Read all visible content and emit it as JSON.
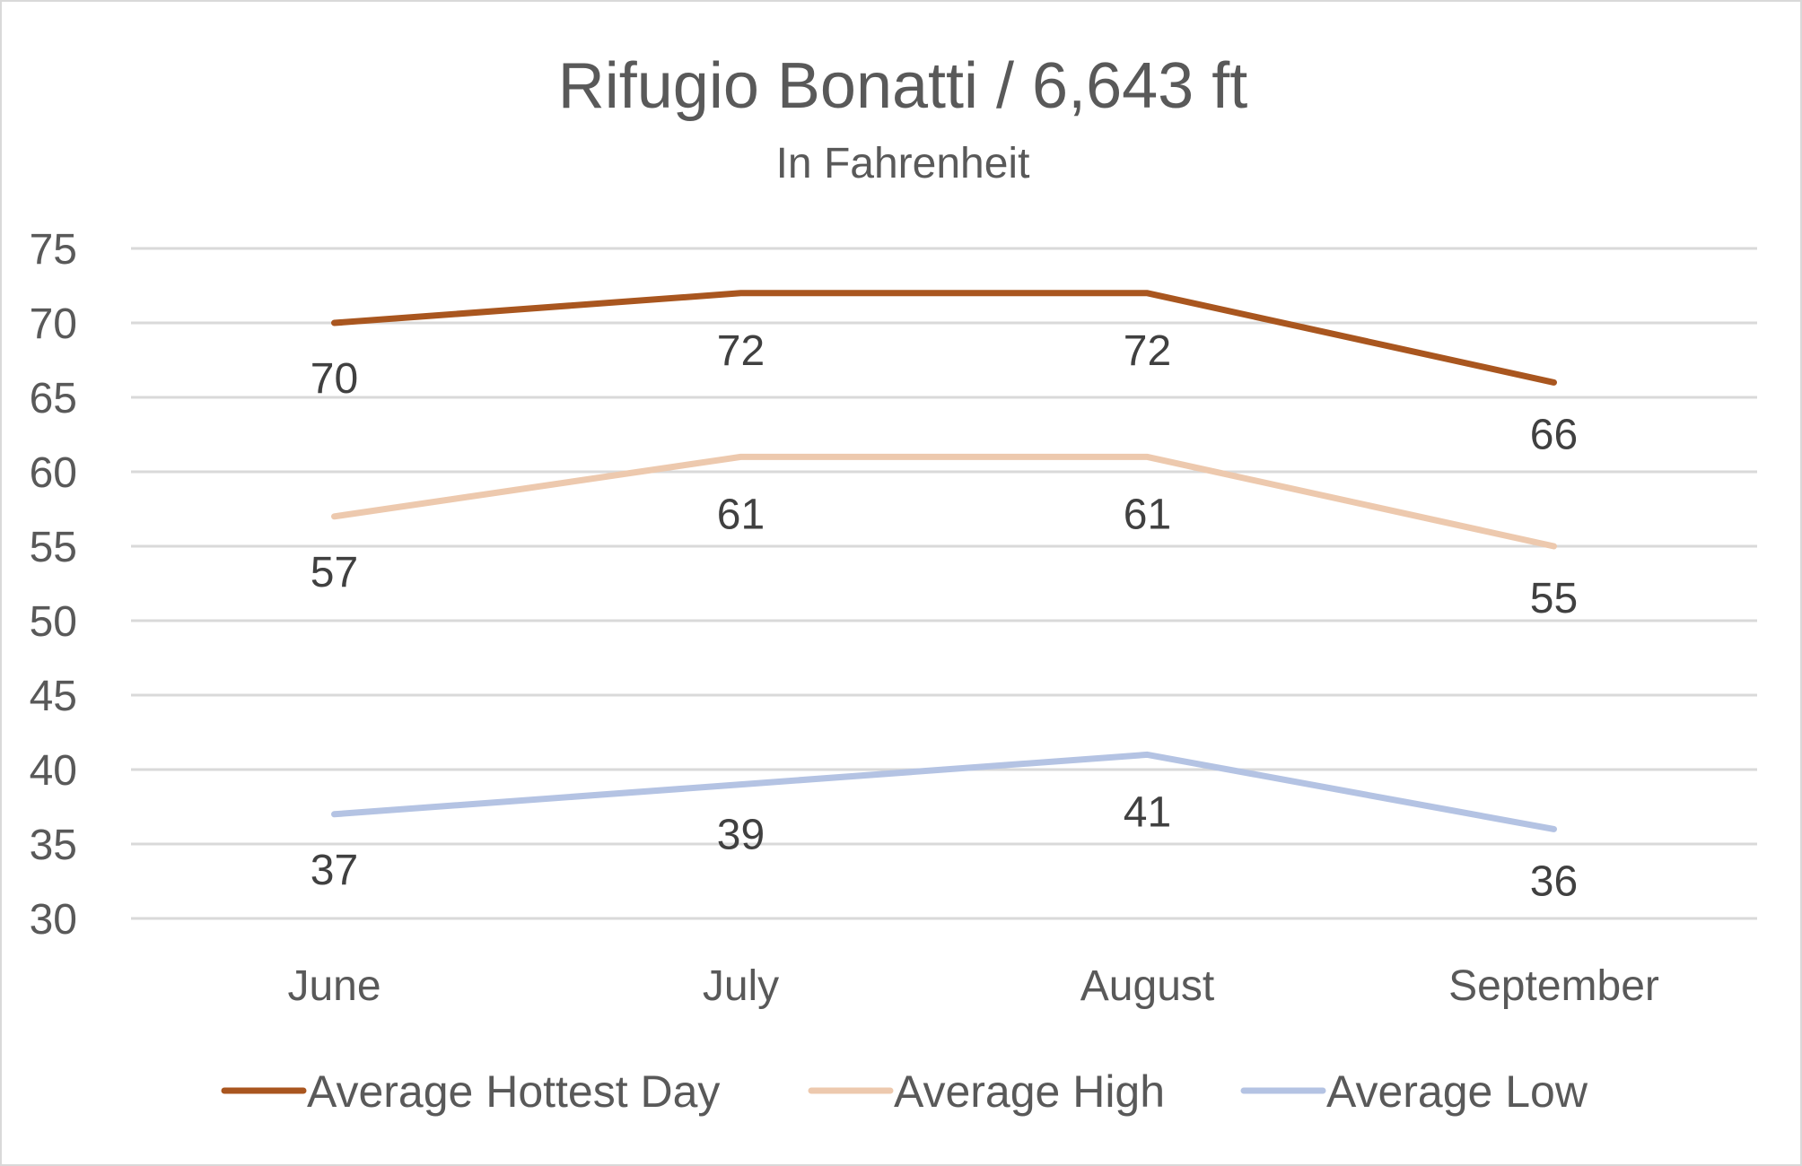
{
  "chart_data": {
    "type": "line",
    "title": "Rifugio Bonatti / 6,643 ft",
    "subtitle": "In Fahrenheit",
    "categories": [
      "June",
      "July",
      "August",
      "September"
    ],
    "ylim": [
      30,
      75
    ],
    "yticks": [
      30,
      35,
      40,
      45,
      50,
      55,
      60,
      65,
      70,
      75
    ],
    "grid": true,
    "legend_position": "bottom",
    "series": [
      {
        "name": "Average Hottest Day",
        "values": [
          70,
          72,
          72,
          66
        ],
        "labels": [
          "70",
          "72",
          "72",
          "66"
        ],
        "color": "#a9561f"
      },
      {
        "name": "Average High",
        "values": [
          57,
          61,
          61,
          55
        ],
        "labels": [
          "57",
          "61",
          "61",
          "55"
        ],
        "color": "#edc9ae"
      },
      {
        "name": "Average Low",
        "values": [
          37,
          39,
          41,
          36
        ],
        "labels": [
          "37",
          "39",
          "41",
          "36"
        ],
        "color": "#b4c3e3"
      }
    ]
  }
}
